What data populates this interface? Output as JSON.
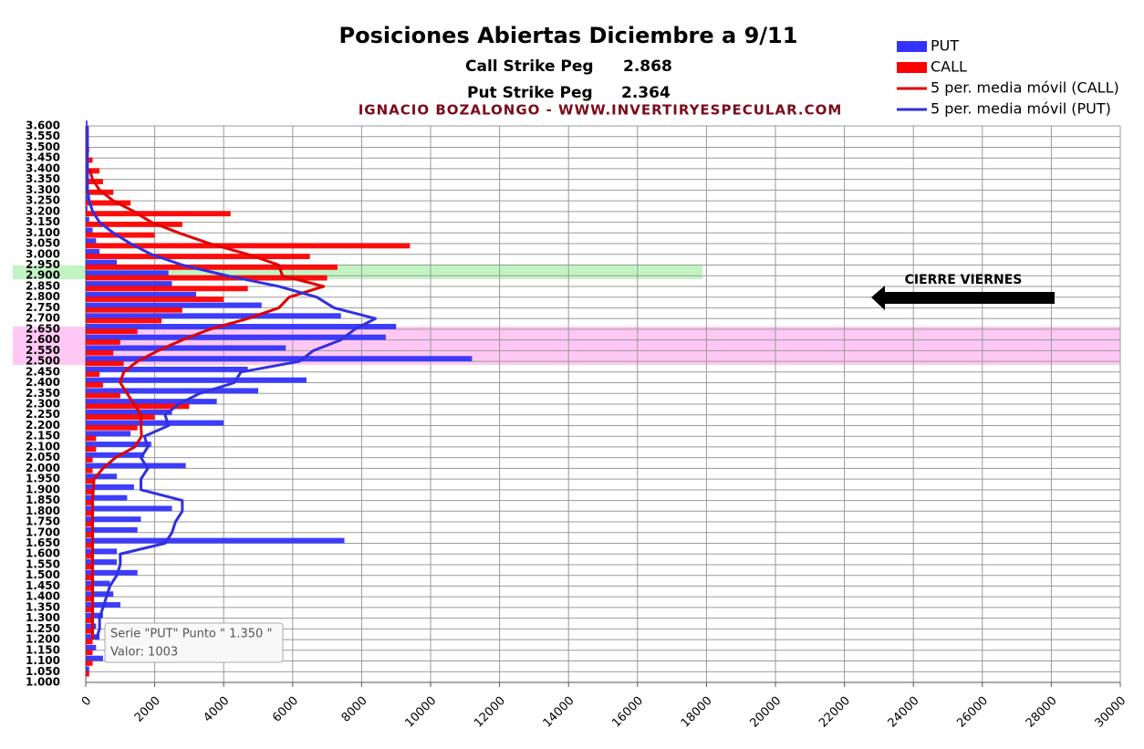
{
  "chart_data": {
    "type": "bar",
    "orientation": "horizontal",
    "title": "Posiciones Abiertas Diciembre a 9/11",
    "annotations": [
      "Call Strike Peg",
      "2.868",
      "Put Strike Peg",
      "2.364",
      "IGNACIO BOZALONGO - WWW.INVERTIRYESPECULAR.COM",
      "CIERRE VIERNES"
    ],
    "tooltip": [
      "Serie \"PUT\" Punto \" 1.350   \"",
      "Valor: 1003"
    ],
    "categories": [
      "1.000",
      "1.050",
      "1.100",
      "1.150",
      "1.200",
      "1.250",
      "1.300",
      "1.350",
      "1.400",
      "1.450",
      "1.500",
      "1.550",
      "1.600",
      "1.650",
      "1.700",
      "1.750",
      "1.800",
      "1.850",
      "1.900",
      "1.950",
      "2.000",
      "2.050",
      "2.100",
      "2.150",
      "2.200",
      "2.250",
      "2.300",
      "2.350",
      "2.400",
      "2.450",
      "2.500",
      "2.550",
      "2.600",
      "2.650",
      "2.700",
      "2.750",
      "2.800",
      "2.850",
      "2.900",
      "2.950",
      "3.000",
      "3.050",
      "3.100",
      "3.150",
      "3.200",
      "3.250",
      "3.300",
      "3.350",
      "3.400",
      "3.450",
      "3.500",
      "3.550",
      "3.600"
    ],
    "series": [
      {
        "name": "PUT",
        "type": "bar",
        "color": "#3333ff",
        "values": [
          0,
          100,
          500,
          300,
          400,
          300,
          500,
          1003,
          800,
          700,
          1500,
          900,
          900,
          7500,
          1500,
          1600,
          2500,
          1200,
          1400,
          900,
          2900,
          1700,
          1900,
          1300,
          4000,
          2500,
          3800,
          5000,
          6400,
          4700,
          11200,
          5800,
          8700,
          9000,
          7400,
          5100,
          3200,
          2500,
          2400,
          900,
          400,
          300,
          200,
          100,
          50,
          50,
          50,
          50,
          50,
          50,
          50,
          50,
          50
        ]
      },
      {
        "name": "CALL",
        "type": "bar",
        "color": "#ff0000",
        "values": [
          0,
          100,
          200,
          200,
          200,
          200,
          200,
          200,
          200,
          200,
          200,
          200,
          200,
          200,
          200,
          200,
          200,
          200,
          200,
          200,
          200,
          200,
          300,
          300,
          1500,
          2000,
          3000,
          1000,
          500,
          400,
          1100,
          800,
          1000,
          1500,
          2200,
          2800,
          4000,
          4700,
          7000,
          7300,
          6500,
          9400,
          2000,
          2800,
          4200,
          1300,
          800,
          500,
          400,
          200,
          100,
          50,
          50
        ]
      },
      {
        "name": "5 per. media móvil (CALL)",
        "type": "line",
        "color": "#e00000",
        "values": [
          null,
          null,
          null,
          null,
          200,
          200,
          200,
          200,
          200,
          200,
          200,
          200,
          200,
          200,
          200,
          200,
          200,
          200,
          220,
          240,
          500,
          860,
          1420,
          1620,
          1600,
          1600,
          1400,
          1200,
          1000,
          1100,
          1500,
          2100,
          2800,
          3600,
          4700,
          5600,
          5900,
          6900,
          5700,
          5600,
          4700,
          3600,
          2700,
          1900,
          1400,
          800,
          400,
          200,
          100,
          null,
          null,
          null,
          null
        ]
      },
      {
        "name": "5 per. media móvil (PUT)",
        "type": "line",
        "color": "#3030e0",
        "values": [
          null,
          null,
          null,
          null,
          300,
          400,
          400,
          500,
          600,
          700,
          900,
          1000,
          1000,
          2300,
          2500,
          2600,
          2800,
          2800,
          1600,
          1600,
          1800,
          1600,
          1800,
          1700,
          2400,
          2300,
          2700,
          3300,
          4300,
          4500,
          6200,
          6600,
          7400,
          7800,
          8400,
          7200,
          6700,
          5600,
          4100,
          2800,
          1900,
          1300,
          800,
          400,
          200,
          100,
          50,
          50,
          50,
          50,
          50,
          50,
          50
        ]
      }
    ],
    "xlim": [
      0,
      30000
    ],
    "xticks": [
      0,
      2000,
      4000,
      6000,
      8000,
      10000,
      12000,
      14000,
      16000,
      18000,
      20000,
      22000,
      24000,
      26000,
      28000,
      30000
    ],
    "grid": true,
    "legend": "top-right"
  }
}
